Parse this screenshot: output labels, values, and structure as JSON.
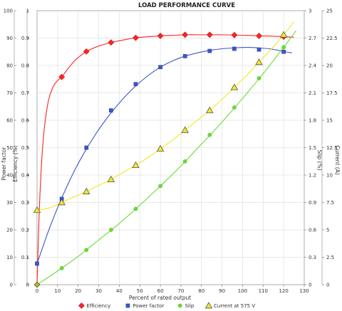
{
  "chart_data": {
    "type": "line",
    "title": "LOAD PERFORMANCE CURVE",
    "xlabel": "Percent of rated output",
    "xlim": [
      0,
      130
    ],
    "x_ticks": [
      0,
      10,
      20,
      30,
      40,
      50,
      60,
      70,
      80,
      90,
      100,
      110,
      120,
      130
    ],
    "left_axes": [
      {
        "label": "Efficiency (%)",
        "range": [
          0,
          100
        ],
        "ticks": [
          0,
          10,
          20,
          30,
          40,
          50,
          60,
          70,
          80,
          90,
          100
        ]
      },
      {
        "label": "Power factor",
        "range": [
          0,
          1
        ],
        "ticks": [
          "0",
          "0.1",
          "0.2",
          "0.3",
          "0.4",
          "0.5",
          "0.6",
          "0.7",
          "0.8",
          "0.9",
          "1"
        ]
      }
    ],
    "right_axes": [
      {
        "label": "Slip (%)",
        "range": [
          0,
          3
        ],
        "ticks": [
          "0",
          "0.3",
          "0.6",
          "0.9",
          "1.2",
          "1.5",
          "1.8",
          "2.1",
          "2.4",
          "2.7",
          "3"
        ]
      },
      {
        "label": "Current (A)",
        "range": [
          0,
          25
        ],
        "ticks": [
          "0",
          "2.5",
          "5",
          "7.5",
          "10",
          "12.5",
          "15",
          "17.5",
          "20",
          "22.5",
          "25"
        ]
      }
    ],
    "grid": true,
    "legend_position": "bottom",
    "series": [
      {
        "name": "Efficiency",
        "axis": "Efficiency (%)",
        "color": "#ff2222",
        "marker": "diamond",
        "x": [
          0,
          12,
          24,
          36,
          48,
          60,
          72,
          84,
          96,
          108,
          120
        ],
        "y": [
          0,
          75.8,
          85.1,
          88.4,
          90.1,
          90.8,
          91.2,
          91.2,
          91.1,
          90.8,
          90.5
        ],
        "curve_x": [
          0,
          1,
          2,
          3,
          4,
          5,
          6,
          8,
          10,
          12,
          15,
          18,
          21,
          24,
          27,
          30,
          33,
          36,
          40,
          44,
          48,
          54,
          60,
          66,
          72,
          78,
          84,
          90,
          96,
          102,
          108,
          114,
          120,
          125
        ],
        "curve_y": [
          0,
          25,
          42,
          53,
          60,
          65,
          68.5,
          72.5,
          74.5,
          75.8,
          78.8,
          81.5,
          83.5,
          85.1,
          86.2,
          87.1,
          87.8,
          88.4,
          89.0,
          89.6,
          90.1,
          90.5,
          90.8,
          91.0,
          91.2,
          91.2,
          91.2,
          91.2,
          91.1,
          91.0,
          90.8,
          90.7,
          90.5,
          90.3
        ]
      },
      {
        "name": "Power factor",
        "axis": "Power factor",
        "color": "#3b55c9",
        "marker": "square",
        "x": [
          0,
          12,
          24,
          36,
          48,
          60,
          72,
          84,
          96,
          108,
          120
        ],
        "y": [
          0.077,
          0.313,
          0.5,
          0.636,
          0.732,
          0.794,
          0.834,
          0.853,
          0.861,
          0.858,
          0.85
        ],
        "curve_x": [
          0,
          6,
          12,
          18,
          24,
          30,
          36,
          42,
          48,
          54,
          60,
          66,
          72,
          78,
          84,
          90,
          96,
          102,
          108,
          114,
          120,
          124
        ],
        "curve_y": [
          0.077,
          0.205,
          0.316,
          0.413,
          0.495,
          0.566,
          0.627,
          0.68,
          0.725,
          0.763,
          0.794,
          0.817,
          0.834,
          0.846,
          0.855,
          0.861,
          0.864,
          0.866,
          0.864,
          0.86,
          0.851,
          0.846
        ]
      },
      {
        "name": "Slip",
        "axis": "Slip (%)",
        "color": "#66dd33",
        "marker": "circle",
        "x": [
          0,
          12,
          24,
          36,
          48,
          60,
          72,
          84,
          96,
          108,
          120
        ],
        "y": [
          0,
          0.18,
          0.38,
          0.6,
          0.83,
          1.08,
          1.35,
          1.64,
          1.94,
          2.26,
          2.6
        ],
        "curve_x": [
          0,
          10,
          20,
          30,
          40,
          50,
          60,
          70,
          80,
          90,
          100,
          110,
          120,
          126
        ],
        "curve_y": [
          0,
          0.15,
          0.31,
          0.49,
          0.67,
          0.87,
          1.08,
          1.3,
          1.54,
          1.78,
          2.04,
          2.31,
          2.6,
          2.78
        ]
      },
      {
        "name": "Current at 575 V",
        "axis": "Current (A)",
        "color": "#f0e82a",
        "marker": "triangle",
        "x": [
          0,
          12,
          24,
          36,
          48,
          60,
          72,
          84,
          96,
          108,
          120
        ],
        "y": [
          6.8,
          7.5,
          8.5,
          9.6,
          10.9,
          12.4,
          14.1,
          15.9,
          18.0,
          20.3,
          22.8
        ],
        "curve_x": [
          0,
          6,
          12,
          18,
          24,
          30,
          36,
          42,
          48,
          54,
          60,
          66,
          72,
          78,
          84,
          90,
          96,
          102,
          108,
          114,
          120,
          125
        ],
        "curve_y": [
          6.8,
          7.0,
          7.5,
          8.0,
          8.5,
          9.05,
          9.6,
          10.25,
          10.9,
          11.6,
          12.4,
          13.2,
          14.1,
          15.0,
          15.9,
          16.9,
          18.0,
          19.1,
          20.3,
          21.5,
          22.8,
          24.0
        ]
      }
    ]
  }
}
